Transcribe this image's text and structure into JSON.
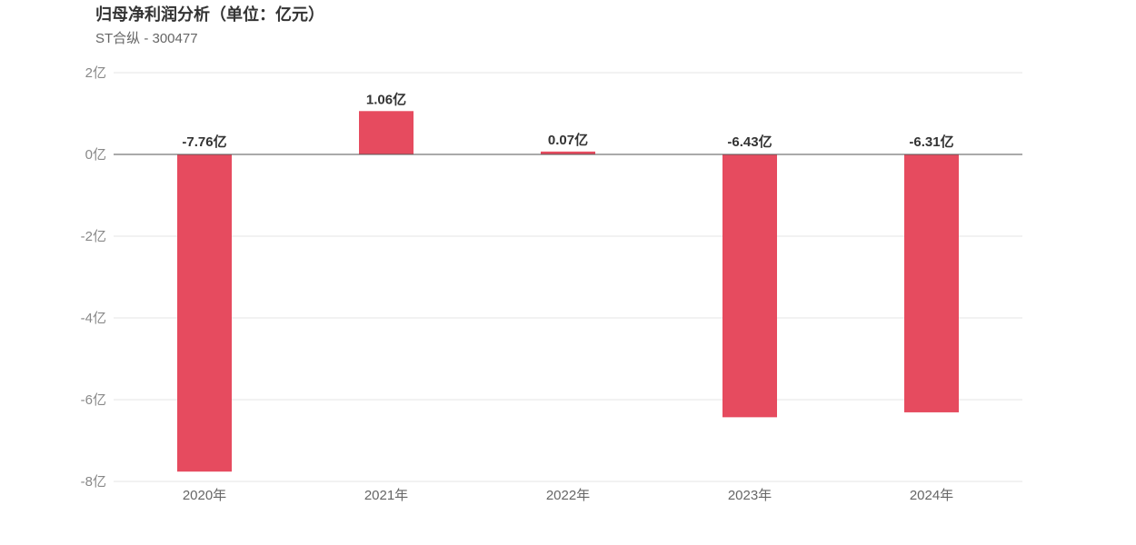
{
  "header": {
    "title": "归母净利润分析（单位：亿元）",
    "subtitle": "ST合纵 - 300477"
  },
  "chart_data": {
    "type": "bar",
    "categories": [
      "2020年",
      "2021年",
      "2022年",
      "2023年",
      "2024年"
    ],
    "values": [
      -7.76,
      1.06,
      0.07,
      -6.43,
      -6.31
    ],
    "value_labels": [
      "-7.76亿",
      "1.06亿",
      "0.07亿",
      "-6.43亿",
      "-6.31亿"
    ],
    "ylim": [
      -8,
      2
    ],
    "yticks": [
      2,
      0,
      -2,
      -4,
      -6,
      -8
    ],
    "ytick_labels": [
      "2亿",
      "0亿",
      "-2亿",
      "-4亿",
      "-6亿",
      "-8亿"
    ],
    "grid": true,
    "legend": "none",
    "colors": {
      "bar": "#e64b5f",
      "grid": "#e6e6e6",
      "zero_line": "#555555"
    }
  }
}
